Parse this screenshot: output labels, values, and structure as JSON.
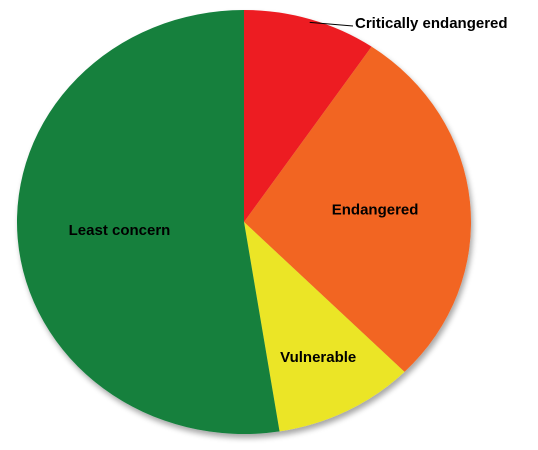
{
  "chart_data": {
    "type": "pie",
    "title": "",
    "slices": [
      {
        "label": "Critically endangered",
        "value": 9.5,
        "color": "#ED1C24"
      },
      {
        "label": "Endangered",
        "value": 28,
        "color": "#F26522"
      },
      {
        "label": "Vulnerable",
        "value": 10,
        "color": "#EBE526"
      },
      {
        "label": "Least concern",
        "value": 52.5,
        "color": "#12803E"
      }
    ],
    "start_angle_deg": 0,
    "direction": "clockwise",
    "legend": "none",
    "label_style": "inside, except Critically endangered uses callout line"
  }
}
